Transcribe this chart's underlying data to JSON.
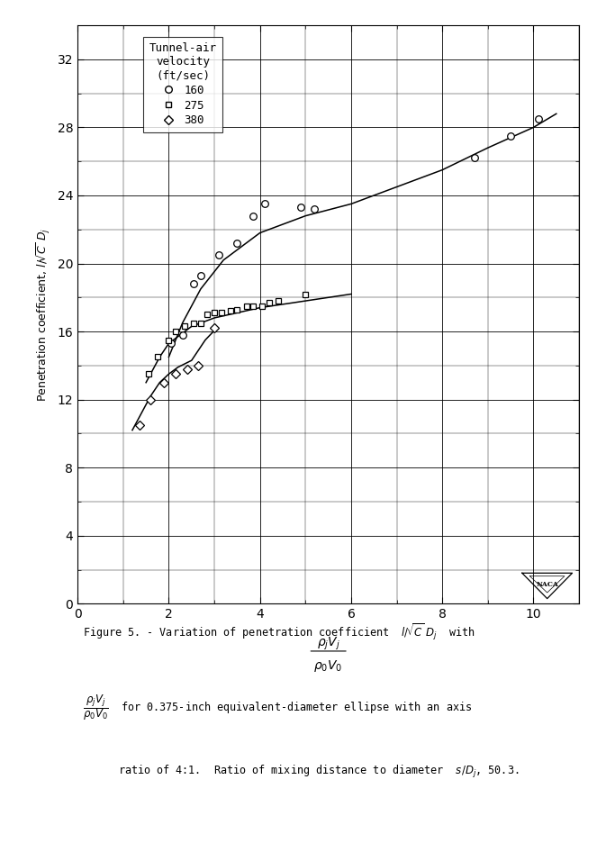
{
  "xlim": [
    0,
    11
  ],
  "ylim": [
    0,
    34
  ],
  "xticks": [
    0,
    2,
    4,
    6,
    8,
    10
  ],
  "yticks": [
    0,
    4,
    8,
    12,
    16,
    20,
    24,
    28,
    32
  ],
  "legend_title": "Tunnel-air\nvelocity\n(ft/sec)",
  "series_160_x": [
    2.05,
    2.3,
    2.55,
    2.7,
    3.1,
    3.5,
    3.85,
    4.1,
    4.9,
    5.2,
    8.7,
    9.5,
    10.1
  ],
  "series_160_y": [
    15.3,
    15.8,
    18.8,
    19.3,
    20.5,
    21.2,
    22.8,
    23.5,
    23.3,
    23.2,
    26.2,
    27.5,
    28.5
  ],
  "series_275_x": [
    1.55,
    1.75,
    2.0,
    2.15,
    2.35,
    2.55,
    2.7,
    2.85,
    3.0,
    3.15,
    3.35,
    3.5,
    3.7,
    3.85,
    4.05,
    4.2,
    4.4,
    5.0
  ],
  "series_275_y": [
    13.5,
    14.5,
    15.5,
    16.0,
    16.3,
    16.5,
    16.5,
    17.0,
    17.1,
    17.1,
    17.2,
    17.3,
    17.5,
    17.5,
    17.5,
    17.7,
    17.8,
    18.2
  ],
  "series_380_x": [
    1.35,
    1.6,
    1.9,
    2.15,
    2.4,
    2.65,
    3.0
  ],
  "series_380_y": [
    10.5,
    12.0,
    13.0,
    13.5,
    13.8,
    14.0,
    16.2
  ],
  "curve_160_x": [
    2.0,
    2.3,
    2.7,
    3.2,
    4.0,
    5.0,
    6.0,
    7.0,
    8.0,
    9.0,
    10.0,
    10.5
  ],
  "curve_160_y": [
    14.5,
    16.5,
    18.5,
    20.2,
    21.8,
    22.8,
    23.5,
    24.5,
    25.5,
    26.8,
    28.0,
    28.8
  ],
  "curve_275_x": [
    1.5,
    1.8,
    2.0,
    2.5,
    3.0,
    3.5,
    4.0,
    4.5,
    5.0,
    5.5,
    6.0
  ],
  "curve_275_y": [
    13.0,
    14.5,
    15.3,
    16.3,
    16.8,
    17.1,
    17.4,
    17.6,
    17.8,
    18.0,
    18.2
  ],
  "curve_380_x": [
    1.2,
    1.4,
    1.6,
    1.8,
    2.0,
    2.2,
    2.5,
    2.8,
    3.05
  ],
  "curve_380_y": [
    10.2,
    11.2,
    12.2,
    13.0,
    13.5,
    13.9,
    14.3,
    15.5,
    16.2
  ],
  "bg_color": "#ffffff"
}
